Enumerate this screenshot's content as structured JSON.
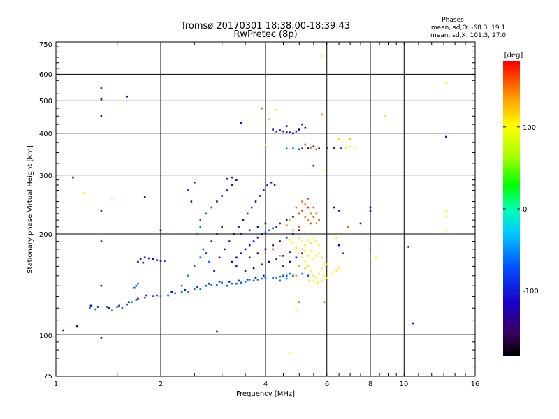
{
  "chart_data": {
    "type": "scatter",
    "title": "Tromsø 20170301 18:38:00-18:39:43",
    "subtitle": "RwPretec (8p)",
    "xlabel": "Frequency [MHz]",
    "ylabel": "Stationary phase Virtual Height [km]",
    "xscale": "log",
    "yscale": "log",
    "xlim": [
      1,
      16
    ],
    "ylim": [
      75,
      750
    ],
    "grid": true,
    "x_ticks": [
      "1",
      "2",
      "4",
      "6",
      "8",
      "10",
      "16"
    ],
    "y_ticks": [
      "75",
      "100",
      "200",
      "300",
      "400",
      "500",
      "600",
      "750"
    ],
    "stats": {
      "heading": "Phases",
      "line_o": "mean, sd,O: -68.3, 19.1",
      "line_x": "mean, sd,X: 101.3, 27.0"
    },
    "colorbar": {
      "label": "[deg]",
      "min": -180,
      "max": 180,
      "ticks": [
        "100",
        "0",
        "-100"
      ],
      "tick_values": [
        100,
        0,
        -100
      ]
    },
    "points": [
      [
        1.05,
        103,
        -110
      ],
      [
        1.15,
        106,
        -120
      ],
      [
        1.35,
        98,
        -130
      ],
      [
        1.12,
        295,
        -100
      ],
      [
        1.2,
        265,
        100
      ],
      [
        1.45,
        255,
        100
      ],
      [
        1.35,
        545,
        -100
      ],
      [
        1.35,
        505,
        -110
      ],
      [
        1.35,
        450,
        -100
      ],
      [
        1.6,
        515,
        -120
      ],
      [
        1.35,
        235,
        -110
      ],
      [
        1.35,
        190,
        -100
      ],
      [
        1.35,
        140,
        -110
      ],
      [
        1.8,
        258,
        -110
      ],
      [
        2.0,
        205,
        -110
      ],
      [
        2.9,
        102,
        -110
      ],
      [
        3.4,
        430,
        -110
      ],
      [
        1.25,
        120,
        -60
      ],
      [
        1.3,
        119,
        -70
      ],
      [
        1.4,
        121,
        -70
      ],
      [
        1.45,
        118,
        -60
      ],
      [
        1.5,
        121,
        -70
      ],
      [
        1.55,
        120,
        -60
      ],
      [
        1.6,
        123,
        -70
      ],
      [
        1.65,
        125,
        -60
      ],
      [
        1.7,
        127,
        -70
      ],
      [
        1.8,
        129,
        -60
      ],
      [
        1.9,
        130,
        -70
      ],
      [
        2.0,
        130,
        -60
      ],
      [
        2.1,
        131,
        -70
      ],
      [
        2.2,
        133,
        -60
      ],
      [
        2.3,
        134,
        -70
      ],
      [
        2.4,
        134,
        -60
      ],
      [
        2.5,
        137,
        -70
      ],
      [
        2.6,
        137,
        -60
      ],
      [
        2.7,
        140,
        -70
      ],
      [
        2.8,
        141,
        -60
      ],
      [
        2.9,
        141,
        -70
      ],
      [
        3.0,
        143,
        -60
      ],
      [
        3.1,
        140,
        -70
      ],
      [
        3.2,
        142,
        -60
      ],
      [
        3.3,
        142,
        -70
      ],
      [
        3.4,
        143,
        -60
      ],
      [
        3.5,
        144,
        -70
      ],
      [
        3.6,
        146,
        -60
      ],
      [
        3.7,
        145,
        -70
      ],
      [
        3.8,
        146,
        -60
      ],
      [
        3.9,
        147,
        -70
      ],
      [
        4.0,
        148,
        -60
      ],
      [
        4.2,
        148,
        -70
      ],
      [
        4.4,
        149,
        -60
      ],
      [
        4.6,
        150,
        -70
      ],
      [
        4.8,
        150,
        -60
      ],
      [
        1.26,
        122,
        -110
      ],
      [
        1.32,
        121,
        -100
      ],
      [
        1.42,
        120,
        -110
      ],
      [
        1.52,
        122,
        -100
      ],
      [
        1.62,
        125,
        -110
      ],
      [
        1.72,
        128,
        -100
      ],
      [
        1.82,
        131,
        -110
      ],
      [
        1.95,
        131,
        -100
      ],
      [
        2.15,
        134,
        -110
      ],
      [
        2.35,
        136,
        -100
      ],
      [
        2.55,
        139,
        -110
      ],
      [
        2.75,
        142,
        -100
      ],
      [
        2.95,
        144,
        -110
      ],
      [
        3.15,
        144,
        -100
      ],
      [
        3.35,
        145,
        -110
      ],
      [
        3.55,
        146,
        -100
      ],
      [
        3.75,
        148,
        -110
      ],
      [
        3.95,
        150,
        -100
      ],
      [
        1.75,
        168,
        -110
      ],
      [
        1.8,
        170,
        -110
      ],
      [
        1.85,
        169,
        -100
      ],
      [
        1.9,
        168,
        -110
      ],
      [
        1.95,
        167,
        -100
      ],
      [
        2.0,
        166,
        -110
      ],
      [
        2.05,
        166,
        -100
      ],
      [
        1.72,
        165,
        -110
      ],
      [
        1.78,
        164,
        -100
      ],
      [
        1.7,
        140,
        -70
      ],
      [
        1.72,
        142,
        -60
      ],
      [
        1.68,
        138,
        -70
      ],
      [
        2.3,
        140,
        -60
      ],
      [
        2.4,
        150,
        -60
      ],
      [
        2.5,
        160,
        -70
      ],
      [
        2.6,
        170,
        -70
      ],
      [
        2.7,
        175,
        -100
      ],
      [
        2.8,
        190,
        -110
      ],
      [
        2.9,
        200,
        -110
      ],
      [
        3.0,
        210,
        -100
      ],
      [
        2.6,
        220,
        -70
      ],
      [
        2.7,
        230,
        -60
      ],
      [
        2.8,
        240,
        -70
      ],
      [
        2.9,
        250,
        -100
      ],
      [
        3.0,
        260,
        -110
      ],
      [
        3.1,
        270,
        -100
      ],
      [
        3.2,
        280,
        -110
      ],
      [
        2.5,
        285,
        -100
      ],
      [
        2.4,
        270,
        -110
      ],
      [
        2.45,
        250,
        -100
      ],
      [
        2.55,
        200,
        -70
      ],
      [
        2.6,
        210,
        -60
      ],
      [
        2.65,
        180,
        -70
      ],
      [
        2.75,
        165,
        -60
      ],
      [
        2.85,
        155,
        -100
      ],
      [
        2.95,
        170,
        -110
      ],
      [
        3.05,
        180,
        -110
      ],
      [
        3.15,
        190,
        -100
      ],
      [
        3.25,
        200,
        -110
      ],
      [
        3.35,
        210,
        -100
      ],
      [
        3.45,
        220,
        -110
      ],
      [
        3.55,
        230,
        -100
      ],
      [
        3.65,
        240,
        -70
      ],
      [
        3.75,
        250,
        -110
      ],
      [
        3.85,
        260,
        -100
      ],
      [
        3.95,
        270,
        -110
      ],
      [
        4.05,
        280,
        -100
      ],
      [
        4.15,
        285,
        -110
      ],
      [
        4.25,
        280,
        -100
      ],
      [
        3.3,
        290,
        -110
      ],
      [
        3.2,
        295,
        -100
      ],
      [
        3.1,
        292,
        -110
      ],
      [
        3.2,
        165,
        -110
      ],
      [
        3.3,
        170,
        -120
      ],
      [
        3.4,
        175,
        -110
      ],
      [
        3.5,
        180,
        -120
      ],
      [
        3.6,
        185,
        -110
      ],
      [
        3.7,
        190,
        -120
      ],
      [
        3.8,
        195,
        -110
      ],
      [
        3.9,
        200,
        -120
      ],
      [
        4.0,
        202,
        -70
      ],
      [
        4.1,
        205,
        -60
      ],
      [
        4.2,
        208,
        -70
      ],
      [
        4.3,
        210,
        -100
      ],
      [
        3.3,
        160,
        -110
      ],
      [
        3.5,
        155,
        -110
      ],
      [
        3.7,
        158,
        -120
      ],
      [
        3.9,
        162,
        -110
      ],
      [
        4.1,
        165,
        -120
      ],
      [
        4.3,
        168,
        -110
      ],
      [
        4.5,
        172,
        -120
      ],
      [
        4.7,
        176,
        -110
      ],
      [
        3.6,
        170,
        -130
      ],
      [
        3.8,
        175,
        -130
      ],
      [
        4.0,
        180,
        -120
      ],
      [
        4.2,
        185,
        -130
      ],
      [
        4.4,
        190,
        -120
      ],
      [
        4.6,
        195,
        -130
      ],
      [
        4.8,
        200,
        -120
      ],
      [
        5.0,
        205,
        -130
      ],
      [
        3.4,
        200,
        -100
      ],
      [
        3.6,
        205,
        -110
      ],
      [
        3.8,
        210,
        -100
      ],
      [
        4.0,
        215,
        -110
      ],
      [
        4.4,
        215,
        -100
      ],
      [
        4.6,
        220,
        -110
      ],
      [
        4.8,
        225,
        -100
      ],
      [
        5.0,
        230,
        -110
      ],
      [
        4.5,
        160,
        -110
      ],
      [
        4.7,
        165,
        -120
      ],
      [
        4.9,
        170,
        -110
      ],
      [
        5.1,
        175,
        -120
      ],
      [
        4.3,
        148,
        -60
      ],
      [
        4.5,
        150,
        -70
      ],
      [
        4.7,
        152,
        -60
      ],
      [
        4.9,
        150,
        -70
      ],
      [
        5.1,
        152,
        -60
      ],
      [
        5.3,
        150,
        -70
      ],
      [
        4.4,
        145,
        -70
      ],
      [
        4.6,
        147,
        -60
      ],
      [
        4.9,
        240,
        150
      ],
      [
        5.0,
        230,
        160
      ],
      [
        5.1,
        235,
        170
      ],
      [
        5.2,
        225,
        150
      ],
      [
        5.3,
        220,
        140
      ],
      [
        5.4,
        215,
        160
      ],
      [
        5.2,
        245,
        150
      ],
      [
        5.3,
        240,
        170
      ],
      [
        5.4,
        230,
        150
      ],
      [
        5.5,
        225,
        160
      ],
      [
        5.6,
        215,
        140
      ],
      [
        5.0,
        210,
        150
      ],
      [
        4.7,
        220,
        120
      ],
      [
        4.8,
        205,
        130
      ],
      [
        4.6,
        212,
        150
      ],
      [
        5.5,
        240,
        160
      ],
      [
        5.6,
        230,
        150
      ],
      [
        5.7,
        220,
        160
      ],
      [
        5.1,
        250,
        150
      ],
      [
        5.3,
        255,
        160
      ],
      [
        5.0,
        195,
        110
      ],
      [
        5.1,
        190,
        100
      ],
      [
        5.2,
        185,
        110
      ],
      [
        5.3,
        192,
        100
      ],
      [
        5.4,
        188,
        110
      ],
      [
        5.5,
        195,
        100
      ],
      [
        5.6,
        190,
        110
      ],
      [
        4.8,
        188,
        100
      ],
      [
        4.9,
        182,
        110
      ],
      [
        4.7,
        192,
        100
      ],
      [
        5.7,
        185,
        100
      ],
      [
        5.0,
        175,
        100
      ],
      [
        5.1,
        170,
        110
      ],
      [
        5.2,
        165,
        100
      ],
      [
        5.3,
        160,
        110
      ],
      [
        5.4,
        155,
        100
      ],
      [
        5.5,
        150,
        110
      ],
      [
        5.6,
        148,
        100
      ],
      [
        5.7,
        152,
        110
      ],
      [
        5.8,
        158,
        100
      ],
      [
        5.9,
        163,
        110
      ],
      [
        5.5,
        168,
        100
      ],
      [
        5.6,
        172,
        110
      ],
      [
        5.7,
        175,
        100
      ],
      [
        5.8,
        170,
        110
      ],
      [
        5.4,
        178,
        100
      ],
      [
        5.3,
        172,
        110
      ],
      [
        5.2,
        178,
        100
      ],
      [
        5.1,
        180,
        110
      ],
      [
        5.9,
        150,
        100
      ],
      [
        6.0,
        148,
        110
      ],
      [
        6.2,
        152,
        100
      ],
      [
        6.4,
        155,
        110
      ],
      [
        6.5,
        158,
        100
      ],
      [
        6.0,
        162,
        110
      ],
      [
        5.0,
        160,
        130
      ],
      [
        5.2,
        158,
        120
      ],
      [
        4.9,
        150,
        130
      ],
      [
        5.35,
        145,
        120
      ],
      [
        5.5,
        145,
        110
      ],
      [
        5.65,
        143,
        100
      ],
      [
        5.8,
        145,
        110
      ],
      [
        4.3,
        405,
        -110
      ],
      [
        4.4,
        408,
        -120
      ],
      [
        4.5,
        405,
        -110
      ],
      [
        4.6,
        403,
        -120
      ],
      [
        4.7,
        402,
        -110
      ],
      [
        4.8,
        400,
        -120
      ],
      [
        4.9,
        405,
        -110
      ],
      [
        5.0,
        410,
        -120
      ],
      [
        4.2,
        410,
        -110
      ],
      [
        4.6,
        420,
        -120
      ],
      [
        5.1,
        425,
        -110
      ],
      [
        5.2,
        415,
        -120
      ],
      [
        5.1,
        360,
        -150
      ],
      [
        5.3,
        360,
        -160
      ],
      [
        5.5,
        365,
        -150
      ],
      [
        5.7,
        360,
        -160
      ],
      [
        4.6,
        360,
        -70
      ],
      [
        4.8,
        360,
        -60
      ],
      [
        5.0,
        358,
        -70
      ],
      [
        5.2,
        370,
        160
      ],
      [
        5.4,
        362,
        150
      ],
      [
        5.6,
        358,
        160
      ],
      [
        6.0,
        360,
        -110
      ],
      [
        6.3,
        362,
        -120
      ],
      [
        6.6,
        360,
        -110
      ],
      [
        6.8,
        362,
        90
      ],
      [
        7.0,
        365,
        90
      ],
      [
        7.2,
        362,
        100
      ],
      [
        6.5,
        385,
        110
      ],
      [
        7.0,
        385,
        120
      ],
      [
        4.0,
        370,
        100
      ],
      [
        5.5,
        320,
        -110
      ],
      [
        3.9,
        475,
        160
      ],
      [
        4.3,
        470,
        110
      ],
      [
        4.1,
        440,
        120
      ],
      [
        5.8,
        680,
        100
      ],
      [
        5.8,
        455,
        150
      ],
      [
        5.9,
        310,
        100
      ],
      [
        8.8,
        450,
        110
      ],
      [
        8.0,
        240,
        -110
      ],
      [
        8.0,
        235,
        -120
      ],
      [
        7.5,
        215,
        -110
      ],
      [
        8.0,
        180,
        150
      ],
      [
        8.3,
        170,
        100
      ],
      [
        10.3,
        183,
        -110
      ],
      [
        10.6,
        108,
        -110
      ],
      [
        13.2,
        565,
        100
      ],
      [
        13.2,
        390,
        -110
      ],
      [
        13.2,
        235,
        100
      ],
      [
        13.2,
        225,
        100
      ],
      [
        13.2,
        205,
        100
      ],
      [
        6.3,
        240,
        -110
      ],
      [
        6.5,
        235,
        -120
      ],
      [
        6.9,
        210,
        150
      ],
      [
        6.4,
        195,
        120
      ],
      [
        6.5,
        185,
        -110
      ],
      [
        6.7,
        175,
        -100
      ],
      [
        4.7,
        88,
        100
      ],
      [
        4.9,
        118,
        100
      ],
      [
        5.0,
        125,
        150
      ],
      [
        5.9,
        125,
        150
      ],
      [
        4.2,
        180,
        160
      ],
      [
        4.0,
        175,
        150
      ],
      [
        4.4,
        172,
        140
      ]
    ]
  }
}
